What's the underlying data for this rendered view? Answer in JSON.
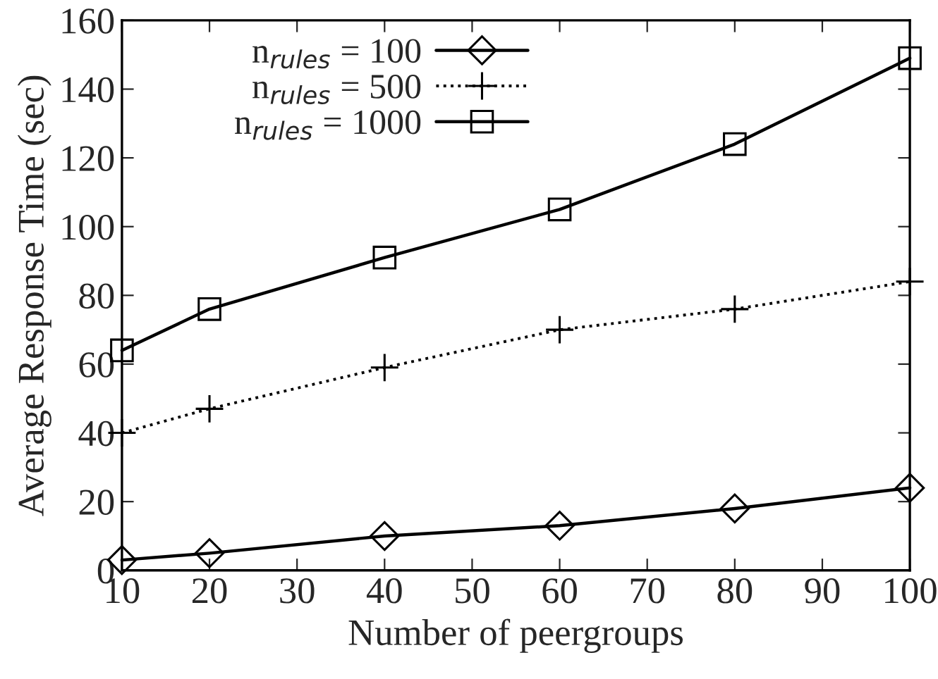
{
  "chart_data": {
    "type": "line",
    "xlabel": "Number of peergroups",
    "ylabel": "Average Response Time (sec)",
    "x": [
      10,
      20,
      40,
      60,
      80,
      100
    ],
    "series": [
      {
        "name": "n$_{rules}$ = 100",
        "color": "#000000",
        "marker": "diamond",
        "line_style": "solid",
        "values": [
          3,
          5,
          10,
          13,
          18,
          24
        ]
      },
      {
        "name": "n$_{rules}$ = 500",
        "color": "#000000",
        "marker": "cross",
        "line_style": "dotted",
        "values": [
          40,
          47,
          59,
          70,
          76,
          84
        ]
      },
      {
        "name": "n$_{rules}$ = 1000",
        "color": "#000000",
        "marker": "square",
        "line_style": "solid",
        "values": [
          64,
          76,
          91,
          105,
          124,
          149
        ]
      }
    ],
    "xlim": [
      10,
      100
    ],
    "xticks": [
      10,
      20,
      30,
      40,
      50,
      60,
      70,
      80,
      90,
      100
    ],
    "ylim": [
      0,
      160
    ],
    "yticks": [
      0,
      20,
      40,
      60,
      80,
      100,
      120,
      140,
      160
    ],
    "grid": false,
    "legend": "top left"
  }
}
